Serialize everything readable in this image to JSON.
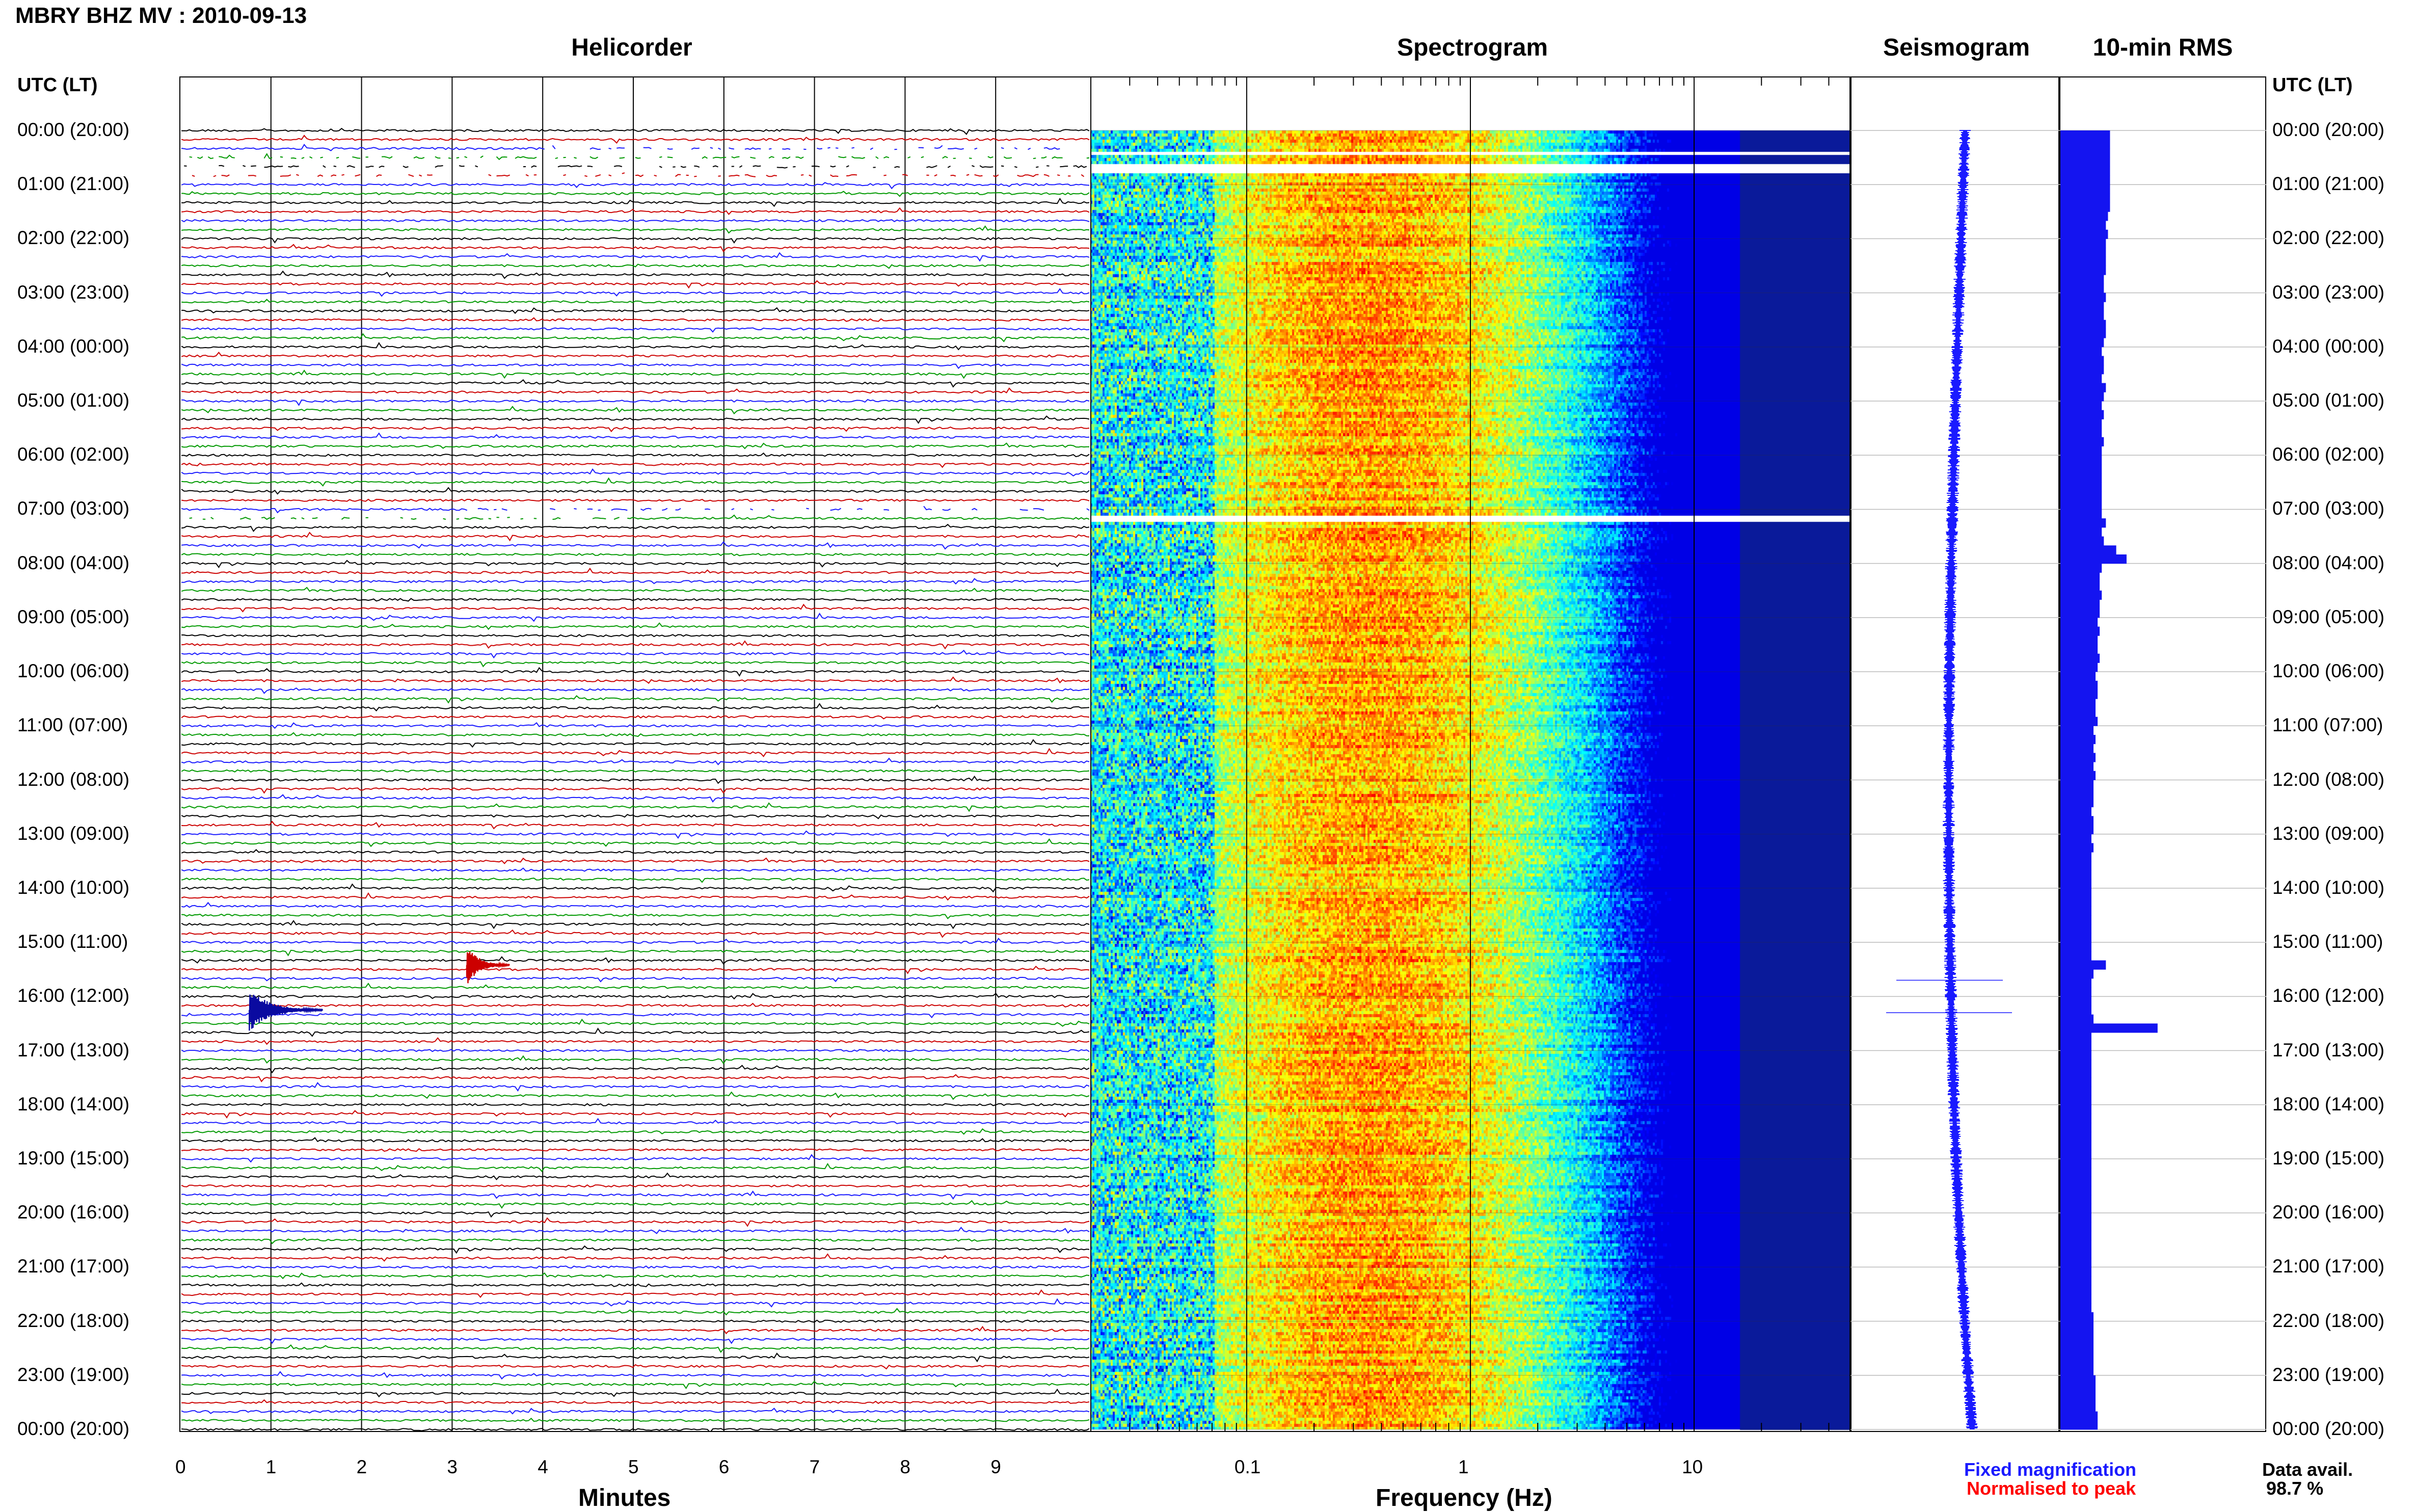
{
  "header": {
    "title": "MBRY BHZ MV : 2010-09-13",
    "utc_label_left": "UTC (LT)",
    "utc_label_right": "UTC (LT)"
  },
  "panels": {
    "helicorder": "Helicorder",
    "spectrogram": "Spectrogram",
    "seismogram": "Seismogram",
    "rms": "10-min RMS"
  },
  "time_labels": [
    "00:00 (20:00)",
    "01:00 (21:00)",
    "02:00 (22:00)",
    "03:00 (23:00)",
    "04:00 (00:00)",
    "05:00 (01:00)",
    "06:00 (02:00)",
    "07:00 (03:00)",
    "08:00 (04:00)",
    "09:00 (05:00)",
    "10:00 (06:00)",
    "11:00 (07:00)",
    "12:00 (08:00)",
    "13:00 (09:00)",
    "14:00 (10:00)",
    "15:00 (11:00)",
    "16:00 (12:00)",
    "17:00 (13:00)",
    "18:00 (14:00)",
    "19:00 (15:00)",
    "20:00 (16:00)",
    "21:00 (17:00)",
    "22:00 (18:00)",
    "23:00 (19:00)",
    "00:00 (20:00)"
  ],
  "axes": {
    "minutes_label": "Minutes",
    "minutes_ticks": [
      "0",
      "1",
      "2",
      "3",
      "4",
      "5",
      "6",
      "7",
      "8",
      "9"
    ],
    "frequency_label": "Frequency (Hz)",
    "frequency_ticks": [
      "0.1",
      "1",
      "10"
    ]
  },
  "legend": {
    "fixed": "Fixed magnification",
    "normalised": "Normalised to peak",
    "data_avail_label": "Data avail.",
    "data_avail_value": "98.7 %"
  },
  "colors": {
    "fixed": "#1a1aff",
    "normalised": "#ff0000",
    "rms_bar": "#1414f0",
    "seismo": "#1a1aff",
    "trace_cycle": [
      "#000000",
      "#cc0000",
      "#1a1aff",
      "#009900"
    ]
  },
  "chart_data": {
    "type": "multi-panel",
    "station": "MBRY BHZ MV",
    "date": "2010-09-13",
    "helicorder": {
      "x_range_minutes": [
        0,
        10
      ],
      "lines_per_hour": 6,
      "hours": 24,
      "data_gaps_hours": [
        [
          0.4,
          1.0
        ],
        [
          7.05,
          7.25
        ]
      ],
      "events": [
        {
          "utc_hour": 15.42,
          "minute": 3.15,
          "color": "red"
        },
        {
          "utc_hour": 16.25,
          "minute": 0.75,
          "color": "blue"
        }
      ]
    },
    "spectrogram": {
      "frequency_range_hz": [
        0.02,
        50
      ],
      "log_frequency": true,
      "peak_frequency_hz": 0.35,
      "gaps_hours": [
        [
          0.38,
          0.42
        ],
        [
          0.62,
          0.75
        ],
        [
          7.1,
          7.2
        ]
      ]
    },
    "rms_10min": {
      "x_max": 1.0,
      "values": [
        0.24,
        0.24,
        0.24,
        0.24,
        0.24,
        0.24,
        0.24,
        0.24,
        0.24,
        0.23,
        0.22,
        0.23,
        0.22,
        0.22,
        0.22,
        0.22,
        0.21,
        0.21,
        0.22,
        0.21,
        0.21,
        0.22,
        0.22,
        0.21,
        0.2,
        0.21,
        0.21,
        0.2,
        0.22,
        0.21,
        0.2,
        0.21,
        0.2,
        0.2,
        0.21,
        0.2,
        0.2,
        0.2,
        0.2,
        0.2,
        0.2,
        0.2,
        0.2,
        0.22,
        0.2,
        0.21,
        0.27,
        0.32,
        0.2,
        0.19,
        0.19,
        0.2,
        0.19,
        0.19,
        0.18,
        0.19,
        0.18,
        0.18,
        0.19,
        0.18,
        0.17,
        0.18,
        0.18,
        0.17,
        0.17,
        0.18,
        0.16,
        0.17,
        0.16,
        0.17,
        0.16,
        0.17,
        0.16,
        0.16,
        0.16,
        0.15,
        0.16,
        0.16,
        0.15,
        0.16,
        0.15,
        0.15,
        0.15,
        0.15,
        0.15,
        0.15,
        0.15,
        0.15,
        0.15,
        0.15,
        0.15,
        0.15,
        0.22,
        0.16,
        0.15,
        0.15,
        0.15,
        0.15,
        0.16,
        0.47,
        0.15,
        0.15,
        0.15,
        0.15,
        0.15,
        0.15,
        0.15,
        0.15,
        0.15,
        0.15,
        0.15,
        0.15,
        0.15,
        0.15,
        0.15,
        0.15,
        0.15,
        0.15,
        0.15,
        0.15,
        0.15,
        0.15,
        0.15,
        0.15,
        0.15,
        0.15,
        0.15,
        0.15,
        0.15,
        0.15,
        0.15,
        0.16,
        0.16,
        0.16,
        0.16,
        0.16,
        0.16,
        0.16,
        0.17,
        0.17,
        0.17,
        0.17,
        0.18,
        0.18
      ]
    },
    "seismogram": {
      "spikes_hours": [
        15.7,
        16.3
      ]
    }
  }
}
